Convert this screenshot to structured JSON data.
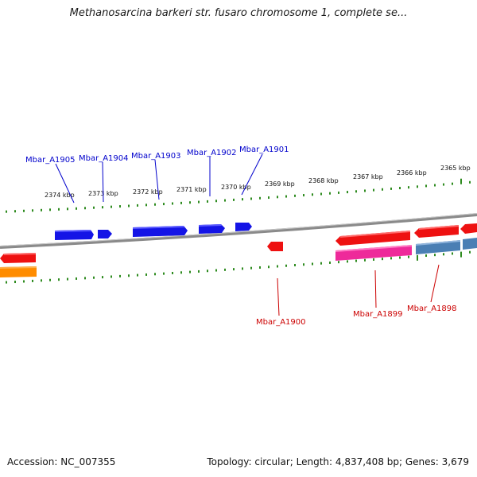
{
  "header": {
    "title": "Methanosarcina barkeri str. fusaro chromosome 1, complete se..."
  },
  "footer": {
    "accession": "Accession: NC_007355",
    "stats": "Topology: circular; Length: 4,837,408 bp; Genes: 3,679"
  },
  "colors": {
    "backbone": "#8a8a8a",
    "tick": "#2e8b1f",
    "upper_label": "#0000cc",
    "lower_label": "#cc0000"
  },
  "scale_labels": [
    "2374 kbp",
    "2373 kbp",
    "2372 kbp",
    "2371 kbp",
    "2370 kbp",
    "2369 kbp",
    "2368 kbp",
    "2367 kbp",
    "2366 kbp",
    "2365 kbp"
  ],
  "upper_gene_labels": [
    "Mbar_A1905",
    "Mbar_A1904",
    "Mbar_A1903",
    "Mbar_A1902",
    "Mbar_A1901"
  ],
  "lower_gene_labels": [
    "Mbar_A1900",
    "Mbar_A1899",
    "Mbar_A1898"
  ],
  "features": [
    {
      "color": "#1414e6",
      "strand": "upper"
    },
    {
      "color": "#1414e6",
      "strand": "upper"
    },
    {
      "color": "#1414e6",
      "strand": "upper"
    },
    {
      "color": "#1414e6",
      "strand": "upper"
    },
    {
      "color": "#1414e6",
      "strand": "upper"
    },
    {
      "color": "#ee1111",
      "strand": "lower"
    },
    {
      "color": "#ee1111",
      "strand": "lower"
    },
    {
      "color": "#ee1111",
      "strand": "lower"
    },
    {
      "color": "#ee1111",
      "strand": "lower"
    },
    {
      "color": "#ee1111",
      "strand": "lower"
    },
    {
      "color": "#ee2a9a",
      "strand": "lower"
    },
    {
      "color": "#4a7fb4",
      "strand": "lower"
    },
    {
      "color": "#4a7fb4",
      "strand": "lower"
    },
    {
      "color": "#ff8c00",
      "strand": "lower"
    }
  ]
}
